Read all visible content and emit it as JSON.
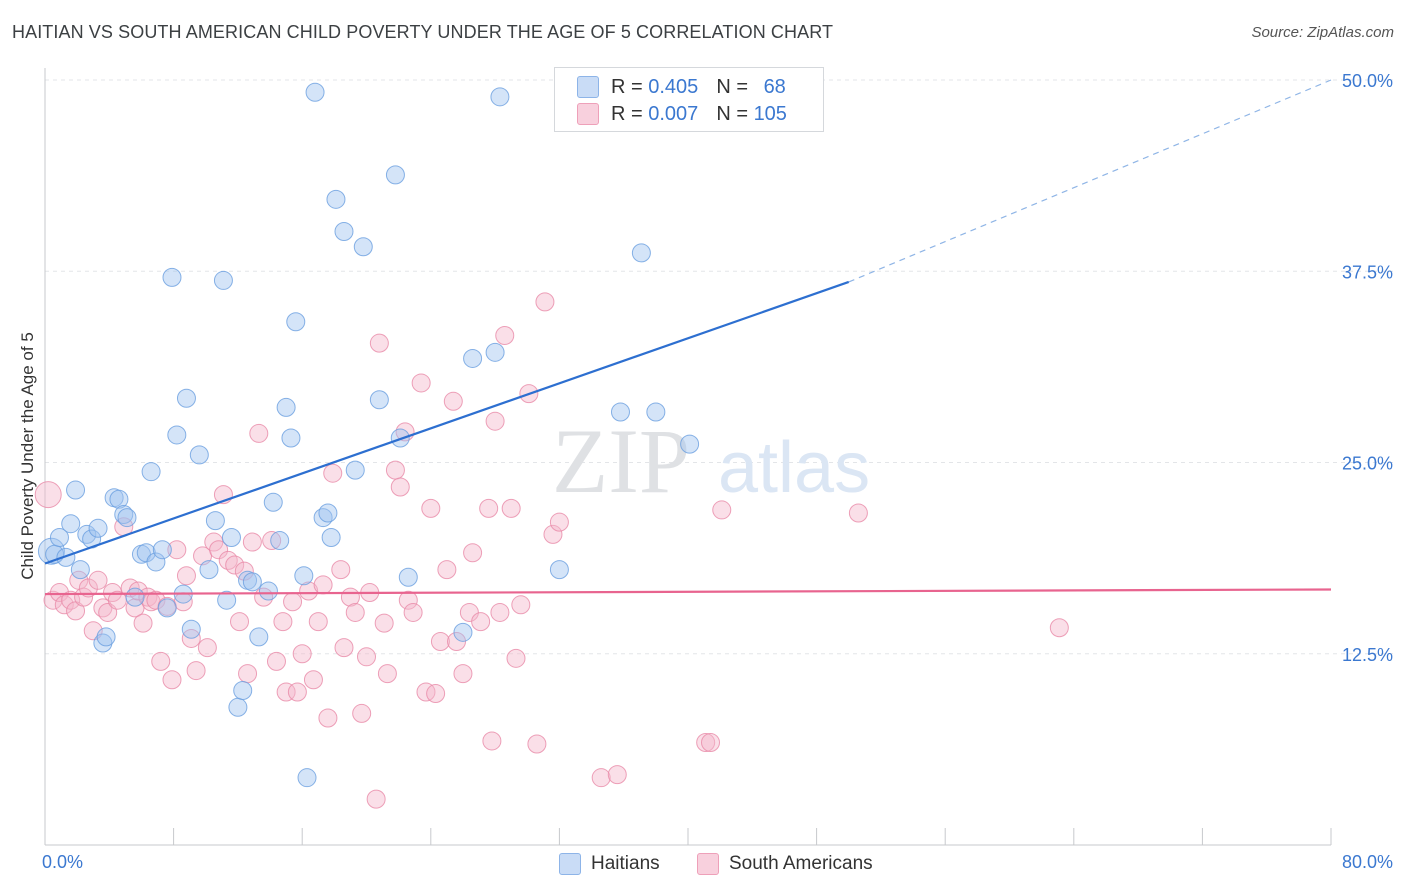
{
  "header": {
    "title": "HAITIAN VS SOUTH AMERICAN CHILD POVERTY UNDER THE AGE OF 5 CORRELATION CHART",
    "source": "Source: ZipAtlas.com"
  },
  "watermark": {
    "zip": "ZIP",
    "atlas": "atlas"
  },
  "legend": {
    "rows": [
      {
        "r_label": "R = ",
        "r_value": "0.405",
        "n_label": "N = ",
        "n_value": "68",
        "color": "#9fc3f0"
      },
      {
        "r_label": "R = ",
        "r_value": "0.007",
        "n_label": "N = ",
        "n_value": "105",
        "color": "#f5b8cb"
      }
    ]
  },
  "bottom_legend": {
    "haitians": "Haitians",
    "south_americans": "South Americans"
  },
  "chart_data": {
    "type": "scatter",
    "title": "HAITIAN VS SOUTH AMERICAN CHILD POVERTY UNDER THE AGE OF 5 CORRELATION CHART",
    "xlabel": "",
    "ylabel": "Child Poverty Under the Age of 5",
    "xlim": [
      0,
      80
    ],
    "ylim": [
      0,
      50
    ],
    "x_tick_labels": [
      "0.0%",
      "80.0%"
    ],
    "y_ticks": [
      12.5,
      25.0,
      37.5,
      50.0
    ],
    "y_tick_labels": [
      "12.5%",
      "25.0%",
      "37.5%",
      "50.0%"
    ],
    "grid": true,
    "legend_position": "top-center",
    "series": [
      {
        "name": "Haitians",
        "color": "#9fc3f0",
        "stroke": "#6a9fe0",
        "trend_color": "#2d6fd0",
        "trend": {
          "x0": 0,
          "y0": 18.4,
          "x1": 50,
          "y1": 36.8,
          "dashed_to_x": 80,
          "dashed_to_y": 50.0
        },
        "points": [
          [
            0.4,
            19.2
          ],
          [
            0.6,
            19.0
          ],
          [
            0.9,
            20.1
          ],
          [
            1.3,
            18.8
          ],
          [
            1.6,
            21.0
          ],
          [
            1.9,
            23.2
          ],
          [
            2.2,
            18.0
          ],
          [
            2.6,
            20.3
          ],
          [
            2.9,
            20.0
          ],
          [
            3.3,
            20.7
          ],
          [
            3.6,
            13.2
          ],
          [
            3.8,
            13.6
          ],
          [
            4.3,
            22.7
          ],
          [
            4.6,
            22.6
          ],
          [
            4.9,
            21.6
          ],
          [
            5.1,
            21.4
          ],
          [
            5.6,
            16.2
          ],
          [
            6.0,
            19.0
          ],
          [
            6.3,
            19.1
          ],
          [
            6.6,
            24.4
          ],
          [
            6.9,
            18.5
          ],
          [
            7.3,
            19.3
          ],
          [
            7.6,
            15.5
          ],
          [
            7.9,
            37.1
          ],
          [
            8.2,
            26.8
          ],
          [
            8.6,
            16.4
          ],
          [
            8.8,
            29.2
          ],
          [
            9.1,
            14.1
          ],
          [
            9.6,
            25.5
          ],
          [
            10.2,
            18.0
          ],
          [
            10.6,
            21.2
          ],
          [
            11.1,
            36.9
          ],
          [
            11.3,
            16.0
          ],
          [
            11.6,
            20.1
          ],
          [
            12.0,
            9.0
          ],
          [
            12.3,
            10.1
          ],
          [
            12.6,
            17.3
          ],
          [
            12.9,
            17.2
          ],
          [
            13.3,
            13.6
          ],
          [
            13.9,
            16.6
          ],
          [
            14.2,
            22.4
          ],
          [
            14.6,
            19.9
          ],
          [
            15.0,
            28.6
          ],
          [
            15.3,
            26.6
          ],
          [
            15.6,
            34.2
          ],
          [
            16.1,
            17.6
          ],
          [
            16.3,
            4.4
          ],
          [
            16.8,
            49.2
          ],
          [
            17.3,
            21.4
          ],
          [
            17.6,
            21.7
          ],
          [
            17.8,
            20.1
          ],
          [
            18.1,
            42.2
          ],
          [
            18.6,
            40.1
          ],
          [
            19.3,
            24.5
          ],
          [
            19.8,
            39.1
          ],
          [
            20.8,
            29.1
          ],
          [
            21.8,
            43.8
          ],
          [
            22.1,
            26.6
          ],
          [
            22.6,
            17.5
          ],
          [
            26.0,
            13.9
          ],
          [
            26.6,
            31.8
          ],
          [
            28.0,
            32.2
          ],
          [
            28.3,
            48.9
          ],
          [
            32.0,
            18.0
          ],
          [
            35.8,
            28.3
          ],
          [
            37.1,
            38.7
          ],
          [
            38.0,
            28.3
          ],
          [
            40.1,
            26.2
          ]
        ]
      },
      {
        "name": "South Americans",
        "color": "#f5b8cb",
        "stroke": "#e98aa8",
        "trend_color": "#e8648f",
        "trend": {
          "x0": 0,
          "y0": 16.4,
          "x1": 80,
          "y1": 16.7
        },
        "points": [
          [
            0.2,
            22.9
          ],
          [
            0.5,
            16.0
          ],
          [
            0.9,
            16.5
          ],
          [
            1.2,
            15.7
          ],
          [
            1.6,
            16.0
          ],
          [
            1.9,
            15.3
          ],
          [
            2.1,
            17.3
          ],
          [
            2.4,
            16.2
          ],
          [
            2.7,
            16.8
          ],
          [
            3.0,
            14.0
          ],
          [
            3.3,
            17.3
          ],
          [
            3.6,
            15.5
          ],
          [
            3.9,
            15.2
          ],
          [
            4.2,
            16.5
          ],
          [
            4.5,
            16.0
          ],
          [
            4.9,
            20.8
          ],
          [
            5.3,
            16.8
          ],
          [
            5.6,
            15.5
          ],
          [
            5.8,
            16.6
          ],
          [
            6.1,
            14.5
          ],
          [
            6.4,
            16.2
          ],
          [
            6.6,
            15.9
          ],
          [
            6.9,
            16.0
          ],
          [
            7.2,
            12.0
          ],
          [
            7.6,
            15.6
          ],
          [
            7.9,
            10.8
          ],
          [
            8.2,
            19.3
          ],
          [
            8.6,
            15.9
          ],
          [
            8.8,
            17.6
          ],
          [
            9.1,
            13.5
          ],
          [
            9.4,
            11.4
          ],
          [
            9.8,
            18.9
          ],
          [
            10.1,
            12.9
          ],
          [
            10.5,
            19.8
          ],
          [
            10.8,
            19.3
          ],
          [
            11.1,
            22.9
          ],
          [
            11.4,
            18.6
          ],
          [
            11.8,
            18.3
          ],
          [
            12.1,
            14.6
          ],
          [
            12.4,
            17.9
          ],
          [
            12.6,
            11.2
          ],
          [
            12.9,
            19.8
          ],
          [
            13.3,
            26.9
          ],
          [
            13.6,
            16.2
          ],
          [
            14.1,
            19.9
          ],
          [
            14.4,
            12.0
          ],
          [
            14.8,
            14.6
          ],
          [
            15.0,
            10.0
          ],
          [
            15.4,
            15.9
          ],
          [
            15.7,
            10.0
          ],
          [
            16.0,
            12.5
          ],
          [
            16.4,
            16.6
          ],
          [
            16.7,
            10.8
          ],
          [
            17.0,
            14.6
          ],
          [
            17.3,
            17.0
          ],
          [
            17.6,
            8.3
          ],
          [
            17.9,
            24.3
          ],
          [
            18.4,
            18.0
          ],
          [
            18.6,
            12.9
          ],
          [
            19.0,
            16.2
          ],
          [
            19.3,
            15.2
          ],
          [
            19.7,
            8.6
          ],
          [
            20.0,
            12.3
          ],
          [
            20.2,
            16.5
          ],
          [
            20.6,
            3.0
          ],
          [
            20.8,
            32.8
          ],
          [
            21.1,
            14.5
          ],
          [
            21.3,
            11.2
          ],
          [
            21.8,
            24.5
          ],
          [
            22.1,
            23.4
          ],
          [
            22.4,
            27.0
          ],
          [
            22.6,
            16.0
          ],
          [
            22.9,
            15.2
          ],
          [
            23.4,
            30.2
          ],
          [
            23.7,
            10.0
          ],
          [
            24.0,
            22.0
          ],
          [
            24.3,
            9.9
          ],
          [
            24.6,
            13.3
          ],
          [
            25.0,
            18.0
          ],
          [
            25.4,
            29.0
          ],
          [
            25.6,
            13.3
          ],
          [
            26.0,
            11.2
          ],
          [
            26.4,
            15.2
          ],
          [
            26.6,
            19.1
          ],
          [
            27.1,
            14.6
          ],
          [
            27.6,
            22.0
          ],
          [
            27.8,
            6.8
          ],
          [
            28.0,
            27.7
          ],
          [
            28.3,
            15.2
          ],
          [
            28.6,
            33.3
          ],
          [
            29.0,
            22.0
          ],
          [
            29.3,
            12.2
          ],
          [
            29.6,
            15.7
          ],
          [
            30.1,
            29.5
          ],
          [
            30.6,
            6.6
          ],
          [
            31.6,
            20.3
          ],
          [
            32.0,
            21.1
          ],
          [
            34.6,
            4.4
          ],
          [
            35.6,
            4.6
          ],
          [
            41.1,
            6.7
          ],
          [
            41.4,
            6.7
          ],
          [
            42.1,
            21.9
          ],
          [
            31.1,
            35.5
          ],
          [
            50.6,
            21.7
          ],
          [
            63.1,
            14.2
          ]
        ]
      }
    ]
  }
}
